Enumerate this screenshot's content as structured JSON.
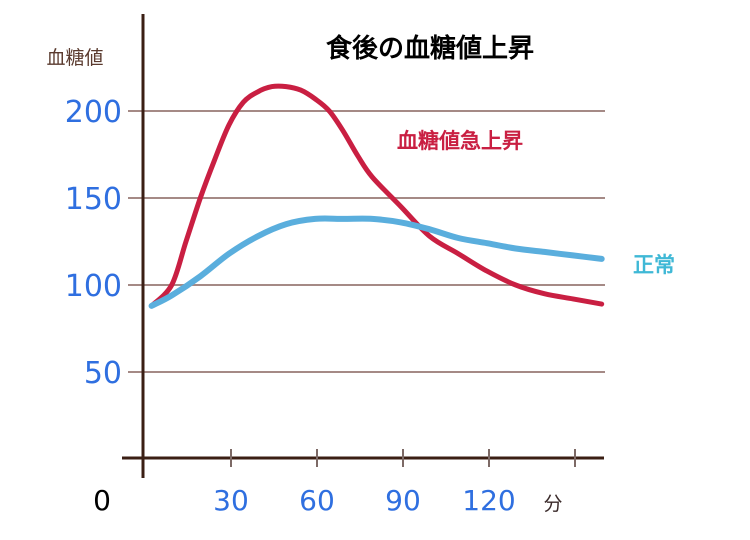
{
  "chart_data": {
    "type": "line",
    "title": "食後の血糖値上昇",
    "ylabel": "血糖値",
    "xlabel": "分",
    "x_origin_label": "0",
    "xlim": [
      0,
      150
    ],
    "ylim": [
      0,
      230
    ],
    "grid": true,
    "x_ticks": [
      30,
      60,
      90,
      120
    ],
    "x_tick_marks": [
      30,
      60,
      90,
      120,
      150
    ],
    "y_ticks": [
      50,
      100,
      150,
      200
    ],
    "tick_color": "#2f6fe0",
    "title_color": "#2f6fe0",
    "axis_color": "#3b1f14",
    "grid_color": "#a58a86",
    "series": [
      {
        "name": "血糖値急上昇",
        "color": "#c91f42",
        "label_color": "#c91f42",
        "x": [
          3,
          10,
          15,
          20,
          25,
          30,
          35,
          40,
          45,
          50,
          55,
          60,
          65,
          70,
          75,
          80,
          90,
          100,
          110,
          120,
          130,
          140,
          150,
          160
        ],
        "y": [
          88,
          100,
          125,
          150,
          172,
          192,
          205,
          211,
          214,
          214,
          212,
          207,
          200,
          188,
          174,
          162,
          145,
          128,
          118,
          108,
          100,
          95,
          92,
          89
        ]
      },
      {
        "name": "正常",
        "color": "#5aaedd",
        "label_color": "#3fb8d6",
        "x": [
          3,
          10,
          20,
          30,
          40,
          50,
          60,
          70,
          80,
          90,
          100,
          110,
          120,
          130,
          140,
          150,
          160
        ],
        "y": [
          88,
          94,
          105,
          118,
          128,
          135,
          138,
          138,
          138,
          136,
          132,
          127,
          124,
          121,
          119,
          117,
          115
        ]
      }
    ]
  }
}
